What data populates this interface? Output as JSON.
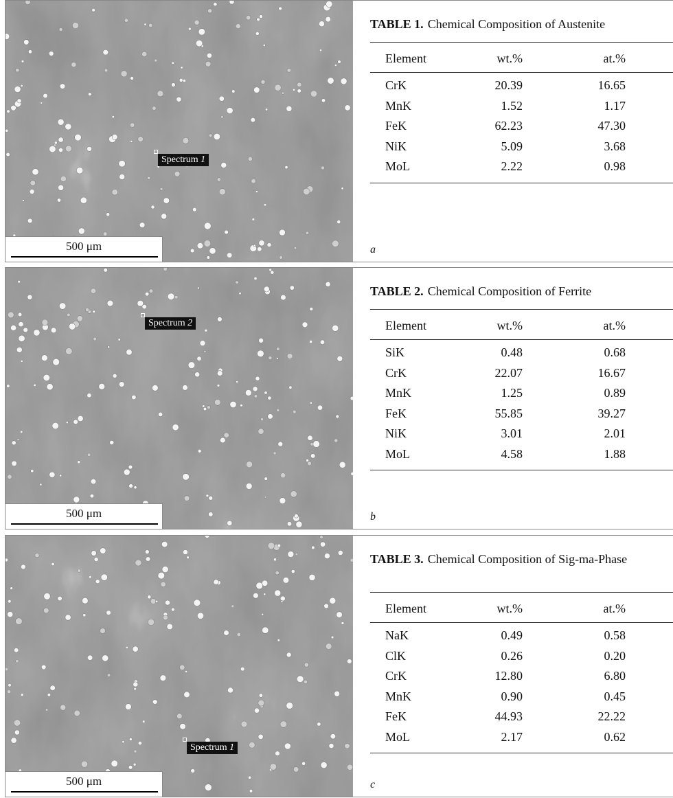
{
  "panels": [
    {
      "image": {
        "scale_bar": "500 μm",
        "spectrum_label": "Spectrum",
        "spectrum_number": "1"
      },
      "table": {
        "number": "TABLE 1.",
        "title": "Chemical Composition of Austenite",
        "headers": [
          "Element",
          "wt.%",
          "at.%"
        ],
        "rows": [
          [
            "CrK",
            "20.39",
            "16.65"
          ],
          [
            "MnK",
            "1.52",
            "1.17"
          ],
          [
            "FeK",
            "62.23",
            "47.30"
          ],
          [
            "NiK",
            "5.09",
            "3.68"
          ],
          [
            "MoL",
            "2.22",
            "0.98"
          ]
        ]
      },
      "label": "a"
    },
    {
      "image": {
        "scale_bar": "500 μm",
        "spectrum_label": "Spectrum",
        "spectrum_number": "2"
      },
      "table": {
        "number": "TABLE 2.",
        "title": "Chemical Composition of Ferrite",
        "headers": [
          "Element",
          "wt.%",
          "at.%"
        ],
        "rows": [
          [
            "SiK",
            "0.48",
            "0.68"
          ],
          [
            "CrK",
            "22.07",
            "16.67"
          ],
          [
            "MnK",
            "1.25",
            "0.89"
          ],
          [
            "FeK",
            "55.85",
            "39.27"
          ],
          [
            "NiK",
            "3.01",
            "2.01"
          ],
          [
            "MoL",
            "4.58",
            "1.88"
          ]
        ]
      },
      "label": "b"
    },
    {
      "image": {
        "scale_bar": "500 μm",
        "spectrum_label": "Spectrum",
        "spectrum_number": "1"
      },
      "table": {
        "number": "TABLE 3.",
        "title": "Chemical Composition of Sig-ma-Phase",
        "headers": [
          "Element",
          "wt.%",
          "at.%"
        ],
        "rows": [
          [
            "NaK",
            "0.49",
            "0.58"
          ],
          [
            "ClK",
            "0.26",
            "0.20"
          ],
          [
            "CrK",
            "12.80",
            "6.80"
          ],
          [
            "MnK",
            "0.90",
            "0.45"
          ],
          [
            "FeK",
            "44.93",
            "22.22"
          ],
          [
            "MoL",
            "2.17",
            "0.62"
          ]
        ]
      },
      "label": "c"
    }
  ]
}
